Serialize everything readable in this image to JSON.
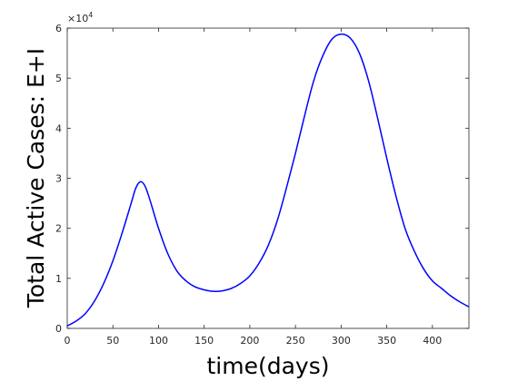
{
  "chart_data": {
    "type": "line",
    "title": "",
    "xlabel": "time(days)",
    "ylabel": "Total Active Cases: E+I",
    "xlim": [
      0,
      440
    ],
    "ylim": [
      0,
      60000
    ],
    "y_exponent_label": "×10",
    "y_exponent_power": "4",
    "x_ticks": [
      0,
      50,
      100,
      150,
      200,
      250,
      300,
      350,
      400
    ],
    "x_tick_labels": [
      "0",
      "50",
      "100",
      "150",
      "200",
      "250",
      "300",
      "350",
      "400"
    ],
    "y_ticks": [
      0,
      10000,
      20000,
      30000,
      40000,
      50000,
      60000
    ],
    "y_tick_labels": [
      "0",
      "1",
      "2",
      "3",
      "4",
      "5",
      "6"
    ],
    "grid": false,
    "series": [
      {
        "color": "#0000ff",
        "x": [
          0,
          10,
          20,
          30,
          40,
          50,
          60,
          70,
          75,
          80,
          85,
          90,
          100,
          110,
          120,
          130,
          140,
          150,
          160,
          170,
          180,
          190,
          200,
          210,
          220,
          230,
          240,
          250,
          260,
          270,
          280,
          290,
          300,
          310,
          320,
          330,
          340,
          350,
          360,
          370,
          380,
          390,
          400,
          410,
          420,
          430,
          440
        ],
        "y": [
          500,
          1500,
          3000,
          5500,
          9000,
          13500,
          19000,
          25000,
          28000,
          29300,
          28500,
          26000,
          20000,
          15000,
          11500,
          9500,
          8300,
          7700,
          7400,
          7500,
          8000,
          9000,
          10500,
          13000,
          16500,
          21500,
          28000,
          35000,
          42500,
          49500,
          54500,
          57800,
          58800,
          58000,
          55000,
          49500,
          42000,
          34000,
          26500,
          20000,
          15500,
          12000,
          9500,
          8000,
          6500,
          5300,
          4300
        ]
      }
    ]
  }
}
